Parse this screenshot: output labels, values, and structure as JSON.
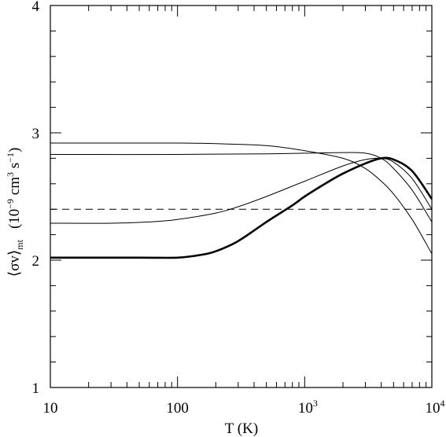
{
  "chart_data": {
    "type": "line",
    "xscale": "log",
    "xlim": [
      10,
      10000
    ],
    "ylim": [
      1,
      4
    ],
    "xlabel": "T (K)",
    "ylabel": {
      "main": "⟨σv⟩",
      "subscript": "mt",
      "units_prefix": "(10",
      "units_exp1": "−9",
      "units_mid": " cm",
      "units_exp2": "3",
      "units_mid2": " s",
      "units_exp3": "−1",
      "units_suffix": ")"
    },
    "x_ticks": [
      {
        "value": 10,
        "label": "10",
        "sup": ""
      },
      {
        "value": 100,
        "label": "100",
        "sup": ""
      },
      {
        "value": 1000,
        "label": "10",
        "sup": "3"
      },
      {
        "value": 10000,
        "label": "10",
        "sup": "4"
      }
    ],
    "y_ticks": [
      {
        "value": 1,
        "label": "1"
      },
      {
        "value": 2,
        "label": "2"
      },
      {
        "value": 3,
        "label": "3"
      },
      {
        "value": 4,
        "label": "4"
      }
    ],
    "series": [
      {
        "style": "solid-thin",
        "x": [
          10,
          30,
          100,
          200,
          500,
          1000,
          2000,
          3000,
          4000,
          5000,
          7000,
          10000
        ],
        "y": [
          2.92,
          2.92,
          2.92,
          2.915,
          2.9,
          2.86,
          2.8,
          2.72,
          2.62,
          2.52,
          2.32,
          2.05
        ]
      },
      {
        "style": "solid-thin",
        "x": [
          10,
          100,
          500,
          1000,
          2000,
          3000,
          4000,
          5000,
          7000,
          10000
        ],
        "y": [
          2.83,
          2.83,
          2.835,
          2.84,
          2.845,
          2.84,
          2.8,
          2.72,
          2.55,
          2.3
        ]
      },
      {
        "style": "solid-thin",
        "x": [
          10,
          30,
          60,
          100,
          200,
          300,
          500,
          1000,
          2000,
          3000,
          4000,
          5000,
          7000,
          10000
        ],
        "y": [
          2.29,
          2.29,
          2.3,
          2.32,
          2.37,
          2.42,
          2.5,
          2.62,
          2.74,
          2.79,
          2.8,
          2.77,
          2.64,
          2.4
        ]
      },
      {
        "style": "solid-thick",
        "x": [
          10,
          50,
          100,
          150,
          200,
          300,
          500,
          800,
          1000,
          1500,
          2000,
          3000,
          4000,
          5000,
          7000,
          10000
        ],
        "y": [
          2.02,
          2.02,
          2.02,
          2.04,
          2.07,
          2.15,
          2.3,
          2.43,
          2.5,
          2.61,
          2.68,
          2.76,
          2.8,
          2.79,
          2.7,
          2.48
        ]
      },
      {
        "style": "dashed",
        "x": [
          10,
          10000
        ],
        "y": [
          2.4,
          2.4
        ]
      }
    ]
  }
}
